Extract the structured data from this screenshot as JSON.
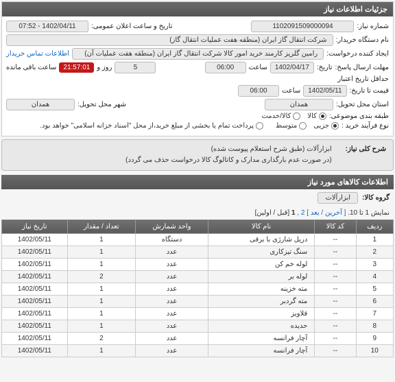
{
  "header": {
    "title": "جزئیات اطلاعات نیاز"
  },
  "info": {
    "need_no_label": "شماره نیاز:",
    "need_no": "1102091509000094",
    "announce_label": "تاریخ و ساعت اعلان عمومی:",
    "announce": "1402/04/11 - 07:52",
    "buyer_org_label": "نام دستگاه خریدار:",
    "buyer_org": "شرکت انتقال گاز ایران (منطقه هفت عملیات انتقال گاز)",
    "creator_label": "ایجاد کننده درخواست:",
    "creator": "رامین گلریز کارمند خرید امور کالا شرکت انتقال گاز ایران (منطقه هفت عملیات آن)",
    "creator_link": "اطلاعات تماس خریدار",
    "resp_deadline_label": "مهلت ارسال پاسخ:",
    "resp_deadline_to_label": "تاریخ:",
    "resp_date": "1402/04/17",
    "time_label": "ساعت",
    "resp_time": "06:00",
    "days_label": "روز و",
    "days": "5",
    "remain_label": "ساعت باقی مانده",
    "remain_time": "21:57:01",
    "valid_label": "حداقل تاریخ اعتبار",
    "valid_sub": "قیمت تا تاریخ:",
    "valid_date": "1402/05/11",
    "valid_time": "06:00",
    "exec_prov_label": "استان محل تحویل:",
    "exec_prov": "همدان",
    "exec_city_label": "شهر محل تحویل:",
    "exec_city": "همدان",
    "subject_class_label": "طبقه بندی موضوعی:",
    "class_goods": "کالا",
    "class_service": "کالا/خدمت",
    "buy_type_label": "نوع فرآیند خرید :",
    "buy_small": "جزیی",
    "buy_medium": "متوسط",
    "pay_note": "پرداخت تمام یا بخشی از مبلغ خرید،از محل \"اسناد خزانه اسلامی\" خواهد بود."
  },
  "summary": {
    "label": "شرح کلی نیاز:",
    "line1": "ابزارآلات (طبق شرح استعلام پیوست شده)",
    "line2": "(در صورت عدم بارگذاری مدارک و کاتالوگ کالا درخواست حذف می گردد)"
  },
  "items_section": {
    "title": "اطلاعات کالاهای مورد نیاز",
    "group_label": "گروه کالا:",
    "group_value": "ابزارآلات",
    "pager_text_pre": "نمایش 1 تا 10.",
    "pager_last": "[ آخرین",
    "pager_next": "/ بعد ]",
    "pager_nums": "2 ,",
    "pager_cur": "1",
    "pager_first": "[قبل / اولین]"
  },
  "columns": {
    "idx": "ردیف",
    "code": "کد کالا",
    "name": "نام کالا",
    "unit": "واحد شمارش",
    "qty": "تعداد / مقدار",
    "date": "تاریخ نیاز"
  },
  "rows": [
    {
      "idx": "1",
      "code": "--",
      "name": "دریل شارژی با برقی",
      "unit": "دستگاه",
      "qty": "1",
      "date": "1402/05/11"
    },
    {
      "idx": "2",
      "code": "--",
      "name": "سنگ تیزکاری",
      "unit": "عدد",
      "qty": "1",
      "date": "1402/05/11"
    },
    {
      "idx": "3",
      "code": "--",
      "name": "لوله خم کن",
      "unit": "عدد",
      "qty": "1",
      "date": "1402/05/11"
    },
    {
      "idx": "4",
      "code": "--",
      "name": "لوله بر",
      "unit": "عدد",
      "qty": "2",
      "date": "1402/05/11"
    },
    {
      "idx": "5",
      "code": "--",
      "name": "مته خزینه",
      "unit": "عدد",
      "qty": "1",
      "date": "1402/05/11"
    },
    {
      "idx": "6",
      "code": "--",
      "name": "مته گردبر",
      "unit": "عدد",
      "qty": "1",
      "date": "1402/05/11"
    },
    {
      "idx": "7",
      "code": "--",
      "name": "قلاویز",
      "unit": "عدد",
      "qty": "1",
      "date": "1402/05/11"
    },
    {
      "idx": "8",
      "code": "--",
      "name": "حدیده",
      "unit": "عدد",
      "qty": "1",
      "date": "1402/05/11"
    },
    {
      "idx": "9",
      "code": "--",
      "name": "آچار فرانسه",
      "unit": "عدد",
      "qty": "2",
      "date": "1402/05/11"
    },
    {
      "idx": "10",
      "code": "--",
      "name": "آچار فرانسه",
      "unit": "عدد",
      "qty": "1",
      "date": "1402/05/11"
    }
  ]
}
